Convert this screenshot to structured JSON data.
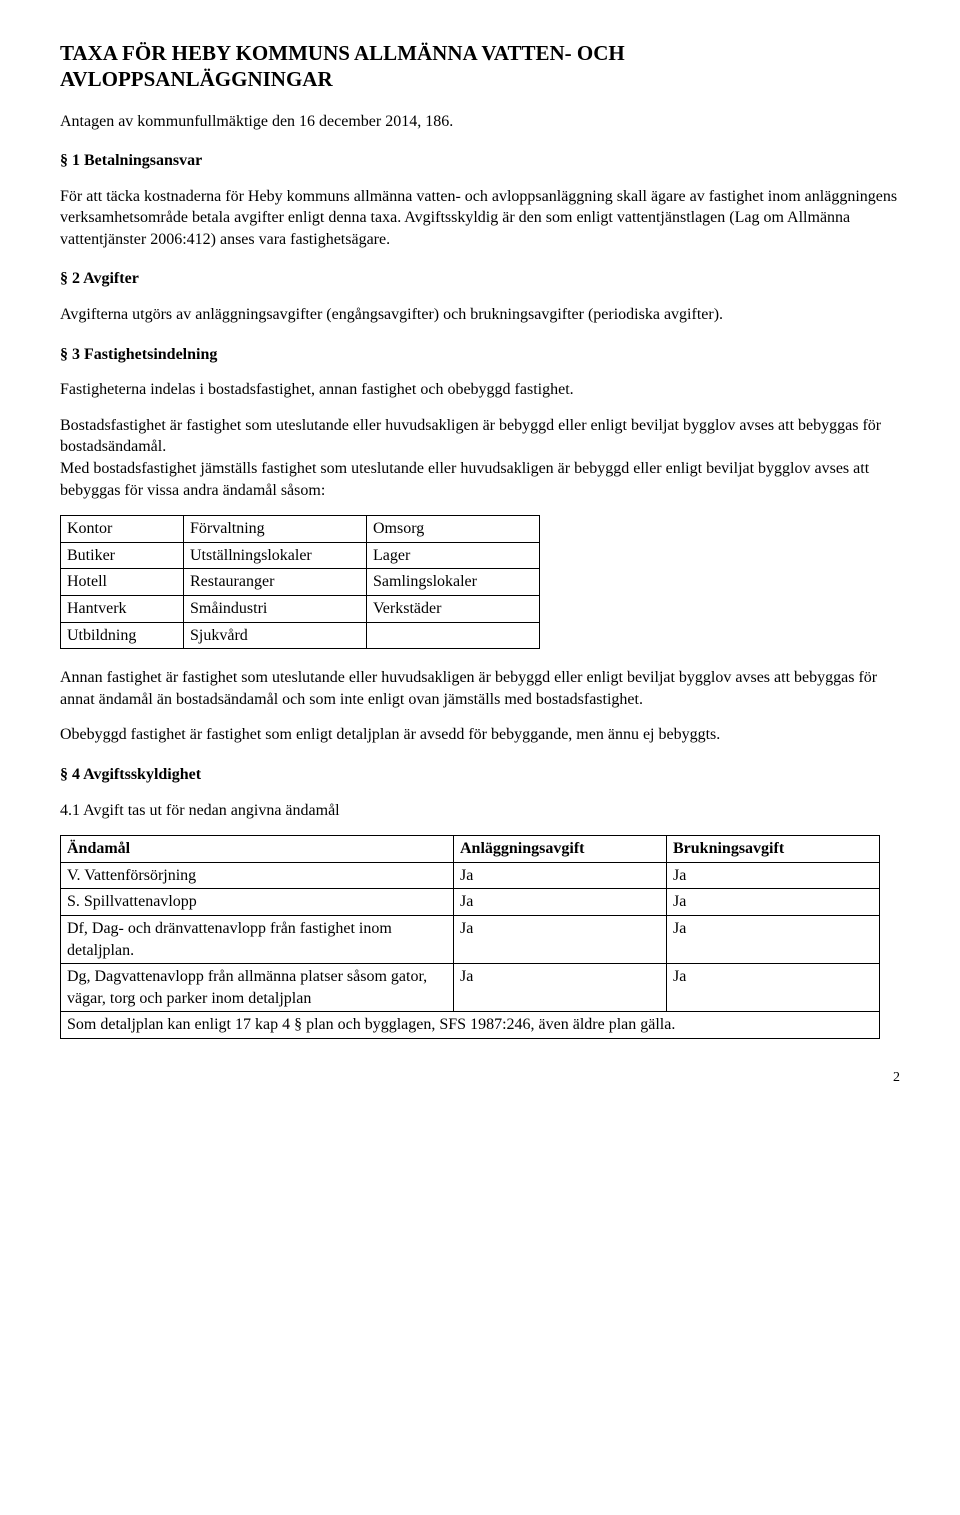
{
  "title_line1": "TAXA FÖR HEBY KOMMUNS ALLMÄNNA VATTEN- OCH",
  "title_line2": "AVLOPPSANLÄGGNINGAR",
  "adopted": "Antagen av kommunfullmäktige den 16 december 2014, 186.",
  "s1": {
    "heading": "§ 1 Betalningsansvar",
    "p1": "För att täcka kostnaderna för Heby kommuns allmänna vatten- och avloppsanläggning skall ägare av fastighet inom anläggningens verksamhetsområde betala avgifter enligt denna taxa. Avgiftsskyldig är den som enligt vattentjänstlagen (Lag om Allmänna vattentjänster 2006:412) anses vara fastighetsägare."
  },
  "s2": {
    "heading": "§ 2 Avgifter",
    "p1": "Avgifterna utgörs av anläggningsavgifter (engångsavgifter) och brukningsavgifter (periodiska avgifter)."
  },
  "s3": {
    "heading": "§ 3 Fastighetsindelning",
    "p1": "Fastigheterna indelas i bostadsfastighet, annan fastighet och obebyggd fastighet.",
    "p2": "Bostadsfastighet är fastighet som uteslutande eller huvudsakligen är bebyggd eller enligt beviljat bygglov avses att bebyggas för bostadsändamål.",
    "p3": "Med bostadsfastighet jämställs fastighet som uteslutande eller huvudsakligen är bebyggd eller enligt beviljat bygglov avses att bebyggas för vissa andra ändamål såsom:",
    "table": {
      "rows": [
        [
          "Kontor",
          "Förvaltning",
          "Omsorg"
        ],
        [
          "Butiker",
          "Utställningslokaler",
          "Lager"
        ],
        [
          "Hotell",
          "Restauranger",
          "Samlingslokaler"
        ],
        [
          "Hantverk",
          "Småindustri",
          "Verkstäder"
        ],
        [
          "Utbildning",
          "Sjukvård",
          ""
        ]
      ],
      "col_widths": [
        "110px",
        "170px",
        "160px"
      ]
    },
    "p4": "Annan fastighet är fastighet som uteslutande eller huvudsakligen är bebyggd eller enligt beviljat bygglov avses att bebyggas för annat ändamål än bostadsändamål och som inte enligt ovan jämställs med bostadsfastighet.",
    "p5": "Obebyggd fastighet är fastighet som enligt detaljplan är avsedd för bebyggande, men ännu ej bebyggts."
  },
  "s4": {
    "heading": "§ 4 Avgiftsskyldighet",
    "sub1": "4.1  Avgift tas ut för nedan angivna ändamål",
    "table": {
      "headers": [
        "Ändamål",
        "Anläggningsavgift",
        "Brukningsavgift"
      ],
      "rows": [
        [
          "V. Vattenförsörjning",
          "Ja",
          "Ja"
        ],
        [
          "S. Spillvattenavlopp",
          "Ja",
          "Ja"
        ],
        [
          "Df, Dag- och dränvattenavlopp från fastighet inom detaljplan.",
          "Ja",
          "Ja"
        ],
        [
          "Dg, Dagvattenavlopp från allmänna platser såsom gator, vägar, torg och parker inom detaljplan",
          "Ja",
          "Ja"
        ]
      ],
      "footer": "Som detaljplan kan enligt 17 kap 4 § plan och bygglagen, SFS 1987:246, även äldre plan gälla.",
      "col_widths": [
        "380px",
        "200px",
        "200px"
      ]
    }
  },
  "page_number": "2"
}
